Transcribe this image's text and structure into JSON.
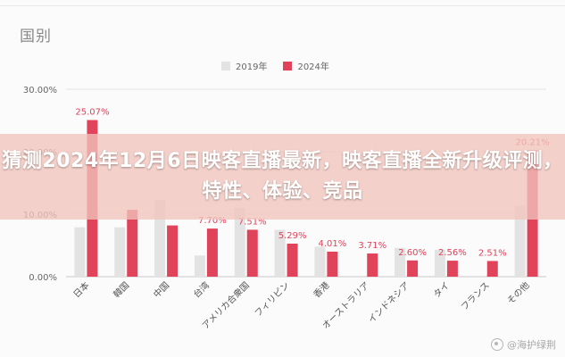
{
  "headline": "猜测2024年12月6日映客直播最新，映客直播全新升级评测，特性、体验、竞品",
  "watermark": "@海护绿荆",
  "colors": {
    "series_2019": "#e3e3e3",
    "series_2024": "#e0435a",
    "overlay": "#f2c4bc"
  },
  "chart_data": {
    "type": "bar",
    "title": "国别",
    "categories": [
      "日本",
      "韓国",
      "中国",
      "台湾",
      "アメリカ合衆国",
      "フィリピン",
      "香港",
      "オーストラリア",
      "インドネシア",
      "タイ",
      "フランス",
      "その他"
    ],
    "series": [
      {
        "name": "2019年",
        "values": [
          7.9,
          7.9,
          12.3,
          3.4,
          11.0,
          7.5,
          4.8,
          0.0,
          4.6,
          4.3,
          0.0,
          11.4
        ]
      },
      {
        "name": "2024年",
        "values": [
          25.07,
          10.7,
          8.2,
          7.7,
          7.51,
          5.29,
          4.01,
          3.71,
          2.6,
          2.56,
          2.51,
          20.21
        ]
      }
    ],
    "data_labels": [
      "25.07%",
      "",
      "",
      "7.70%",
      "7.51%",
      "5.29%",
      "4.01%",
      "3.71%",
      "2.60%",
      "2.56%",
      "2.51%",
      "20.21%"
    ],
    "yticks": [
      "0.00%",
      "10.00%",
      "20.00%",
      "30.00%"
    ],
    "ylim": [
      0,
      30
    ],
    "grid": true,
    "legend": "top-center"
  }
}
